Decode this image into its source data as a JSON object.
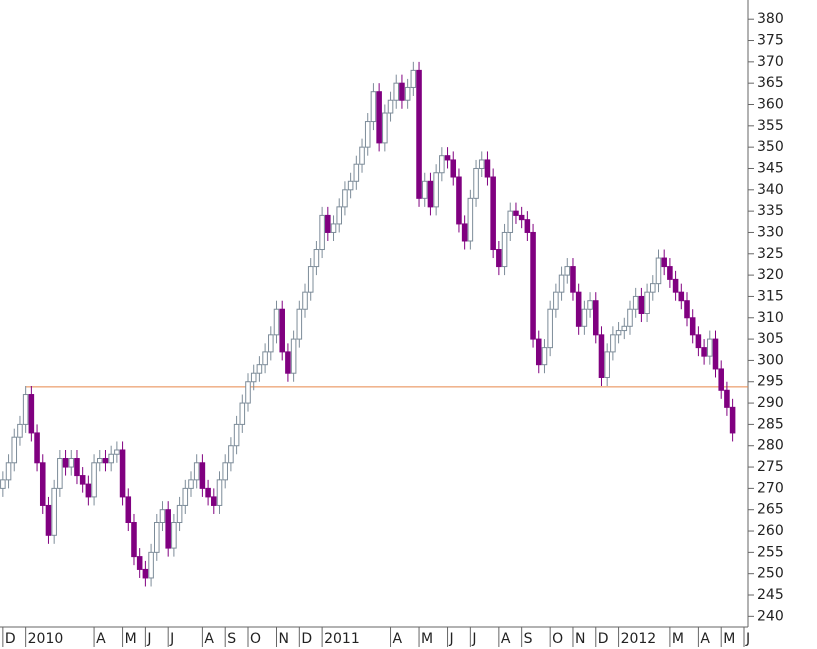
{
  "chart_data": {
    "type": "candlestick",
    "up_color": "#ffffff",
    "up_edge": "#7d8c99",
    "down_color": "#800080",
    "hline": {
      "value": 293.8,
      "color": "#e8864a"
    },
    "ylim": [
      237.5,
      384.5
    ],
    "yticks": [
      240,
      245,
      250,
      255,
      260,
      265,
      270,
      275,
      280,
      285,
      290,
      295,
      300,
      305,
      310,
      315,
      320,
      325,
      330,
      335,
      340,
      345,
      350,
      355,
      360,
      365,
      370,
      375,
      380
    ],
    "xlim": [
      -0.5,
      130.7
    ],
    "xticks": [
      {
        "value": 0,
        "label": "D"
      },
      {
        "value": 4,
        "label": "2010"
      },
      {
        "value": 16,
        "label": "A"
      },
      {
        "value": 21,
        "label": "M"
      },
      {
        "value": 25,
        "label": "J"
      },
      {
        "value": 29,
        "label": "J"
      },
      {
        "value": 35,
        "label": "A"
      },
      {
        "value": 39,
        "label": "S"
      },
      {
        "value": 43,
        "label": "O"
      },
      {
        "value": 48,
        "label": "N"
      },
      {
        "value": 52,
        "label": "D"
      },
      {
        "value": 56,
        "label": "2011"
      },
      {
        "value": 68,
        "label": "A"
      },
      {
        "value": 73,
        "label": "M"
      },
      {
        "value": 78,
        "label": "J"
      },
      {
        "value": 82,
        "label": "J"
      },
      {
        "value": 87,
        "label": "A"
      },
      {
        "value": 91,
        "label": "S"
      },
      {
        "value": 96,
        "label": "O"
      },
      {
        "value": 100,
        "label": "N"
      },
      {
        "value": 104,
        "label": "D"
      },
      {
        "value": 108,
        "label": "2012"
      },
      {
        "value": 117,
        "label": "M"
      },
      {
        "value": 122,
        "label": "A"
      },
      {
        "value": 126,
        "label": "M"
      },
      {
        "value": 130,
        "label": "J"
      }
    ],
    "open": [
      270,
      272,
      276,
      282,
      285,
      292,
      283,
      276,
      266,
      259,
      270,
      277,
      275,
      277,
      273,
      271,
      268,
      276,
      277,
      276,
      278,
      279,
      268,
      262,
      254,
      251,
      249,
      255,
      262,
      265,
      256,
      262,
      266,
      270,
      272,
      276,
      270,
      268,
      266,
      272,
      276,
      280,
      285,
      290,
      295,
      297,
      299,
      302,
      306,
      312,
      302,
      297,
      305,
      312,
      316,
      322,
      326,
      334,
      330,
      332,
      336,
      340,
      342,
      346,
      350,
      356,
      363,
      351,
      358,
      361,
      365,
      361,
      364,
      368,
      338,
      342,
      336,
      344,
      348,
      347,
      343,
      332,
      328,
      338,
      345,
      347,
      343,
      326,
      322,
      330,
      335,
      334,
      333,
      330,
      305,
      299,
      303,
      312,
      316,
      320,
      322,
      316,
      308,
      312,
      314,
      306,
      296,
      302,
      306,
      307,
      308,
      312,
      315,
      311,
      316,
      318,
      324,
      322,
      319,
      316,
      314,
      310,
      306,
      303,
      301,
      305,
      298,
      293,
      289
    ],
    "high": [
      274,
      278,
      284,
      287,
      294,
      294,
      285,
      278,
      268,
      272,
      279,
      279,
      279,
      279,
      275,
      273,
      278,
      279,
      279,
      280,
      281,
      281,
      270,
      264,
      256,
      253,
      257,
      264,
      267,
      267,
      264,
      268,
      272,
      274,
      278,
      278,
      272,
      270,
      274,
      278,
      282,
      287,
      292,
      297,
      299,
      301,
      304,
      308,
      314,
      314,
      304,
      307,
      314,
      318,
      324,
      328,
      336,
      336,
      334,
      338,
      342,
      344,
      348,
      352,
      358,
      365,
      365,
      360,
      363,
      367,
      367,
      366,
      370,
      370,
      344,
      344,
      346,
      350,
      350,
      349,
      345,
      334,
      340,
      347,
      349,
      349,
      345,
      328,
      332,
      337,
      337,
      336,
      335,
      332,
      307,
      305,
      314,
      318,
      322,
      324,
      324,
      318,
      314,
      316,
      316,
      308,
      304,
      308,
      309,
      310,
      314,
      317,
      317,
      318,
      320,
      326,
      326,
      324,
      321,
      318,
      316,
      312,
      308,
      305,
      307,
      307,
      300,
      295,
      291
    ],
    "low": [
      268,
      270,
      274,
      280,
      283,
      281,
      274,
      264,
      257,
      257,
      268,
      273,
      273,
      271,
      269,
      266,
      266,
      274,
      274,
      274,
      276,
      266,
      260,
      252,
      249,
      247,
      247,
      253,
      260,
      254,
      254,
      260,
      264,
      268,
      270,
      268,
      266,
      264,
      264,
      270,
      274,
      278,
      283,
      288,
      293,
      295,
      297,
      300,
      304,
      300,
      295,
      295,
      303,
      310,
      314,
      320,
      324,
      328,
      328,
      330,
      334,
      338,
      340,
      344,
      348,
      354,
      349,
      349,
      356,
      359,
      359,
      359,
      362,
      336,
      336,
      334,
      334,
      342,
      345,
      341,
      330,
      326,
      326,
      336,
      343,
      341,
      324,
      320,
      320,
      328,
      332,
      331,
      328,
      303,
      297,
      297,
      301,
      310,
      314,
      318,
      314,
      306,
      306,
      310,
      304,
      294,
      294,
      300,
      304,
      305,
      306,
      310,
      309,
      309,
      314,
      316,
      320,
      317,
      314,
      312,
      308,
      304,
      301,
      299,
      299,
      296,
      291,
      287,
      281
    ],
    "close": [
      272,
      276,
      282,
      285,
      292,
      283,
      276,
      266,
      259,
      270,
      277,
      275,
      277,
      273,
      271,
      268,
      276,
      277,
      276,
      278,
      279,
      268,
      262,
      254,
      251,
      249,
      255,
      262,
      265,
      256,
      262,
      266,
      270,
      272,
      276,
      270,
      268,
      266,
      272,
      276,
      280,
      285,
      290,
      295,
      297,
      299,
      302,
      306,
      312,
      302,
      297,
      305,
      312,
      316,
      322,
      326,
      334,
      330,
      332,
      336,
      340,
      342,
      346,
      350,
      356,
      363,
      351,
      358,
      361,
      365,
      361,
      364,
      368,
      338,
      342,
      336,
      344,
      348,
      347,
      343,
      332,
      328,
      338,
      345,
      347,
      343,
      326,
      322,
      330,
      335,
      334,
      333,
      330,
      305,
      299,
      303,
      312,
      316,
      320,
      322,
      316,
      308,
      312,
      314,
      306,
      296,
      302,
      306,
      307,
      308,
      312,
      315,
      311,
      316,
      318,
      324,
      322,
      319,
      316,
      314,
      310,
      306,
      303,
      301,
      305,
      298,
      293,
      289,
      283
    ]
  }
}
